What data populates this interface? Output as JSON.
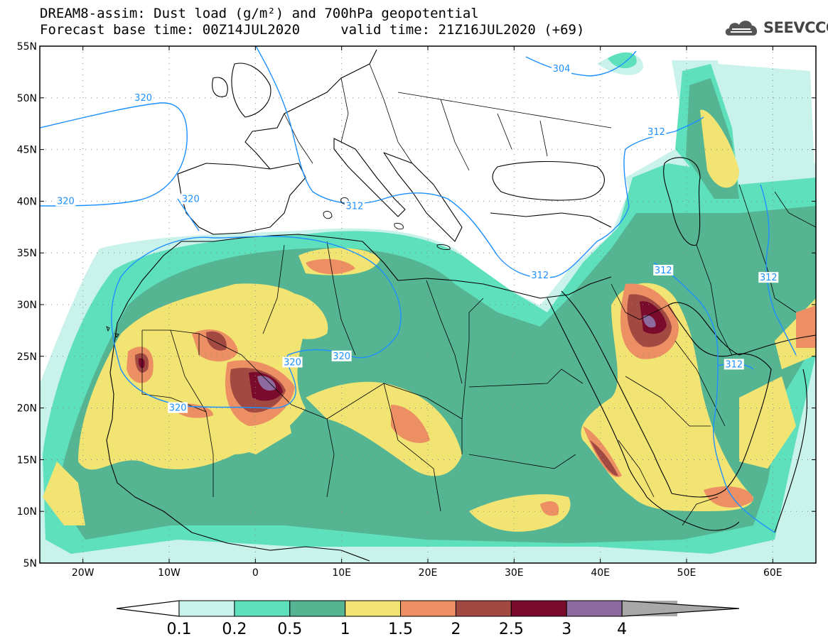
{
  "header": {
    "title_line1": "DREAM8-assim: Dust load (g/m²) and 700hPa geopotential",
    "title_line2": "Forecast base time: 00Z14JUL2020     valid time: 21Z16JUL2020 (+69)",
    "logo_text": "SEEVCCC"
  },
  "map": {
    "lon_range": [
      -25,
      65
    ],
    "lat_range": [
      5,
      55
    ],
    "lat_ticks": [
      "55N",
      "50N",
      "45N",
      "40N",
      "35N",
      "30N",
      "25N",
      "20N",
      "15N",
      "10N",
      "5N"
    ],
    "lon_ticks": [
      "20W",
      "10W",
      "0",
      "10E",
      "20E",
      "30E",
      "40E",
      "50E",
      "60E"
    ],
    "colors": {
      "coast": "#000000",
      "contour": "#1e90ff",
      "grid": "#888888"
    },
    "contour_labels": [
      {
        "text": "320",
        "lon": -13,
        "lat": 50
      },
      {
        "text": "320",
        "lon": -22,
        "lat": 40
      },
      {
        "text": "320",
        "lon": -7.5,
        "lat": 40.2
      },
      {
        "text": "312",
        "lon": 11.5,
        "lat": 39.5
      },
      {
        "text": "304",
        "lon": 35.5,
        "lat": 52.8
      },
      {
        "text": "312",
        "lon": 46.5,
        "lat": 46.7
      },
      {
        "text": "312",
        "lon": 33,
        "lat": 32.8
      },
      {
        "text": "312",
        "lon": 47.3,
        "lat": 33.3
      },
      {
        "text": "312",
        "lon": 59.5,
        "lat": 32.6
      },
      {
        "text": "320",
        "lon": 4.3,
        "lat": 24.4
      },
      {
        "text": "320",
        "lon": 10,
        "lat": 25
      },
      {
        "text": "320",
        "lon": -9,
        "lat": 20
      },
      {
        "text": "312",
        "lon": 55.5,
        "lat": 24.2
      }
    ]
  },
  "colorbar": {
    "labels": [
      "0.1",
      "0.2",
      "0.5",
      "1",
      "1.5",
      "2",
      "2.5",
      "3",
      "4"
    ],
    "levels": [
      0.1,
      0.2,
      0.5,
      1,
      1.5,
      2,
      2.5,
      3,
      4
    ],
    "colors": [
      "#c9f2ea",
      "#5fe0bd",
      "#55b592",
      "#f2e473",
      "#ec9064",
      "#a24942",
      "#7b0b2c",
      "#8e6b9e",
      "#a8a8a8"
    ]
  }
}
